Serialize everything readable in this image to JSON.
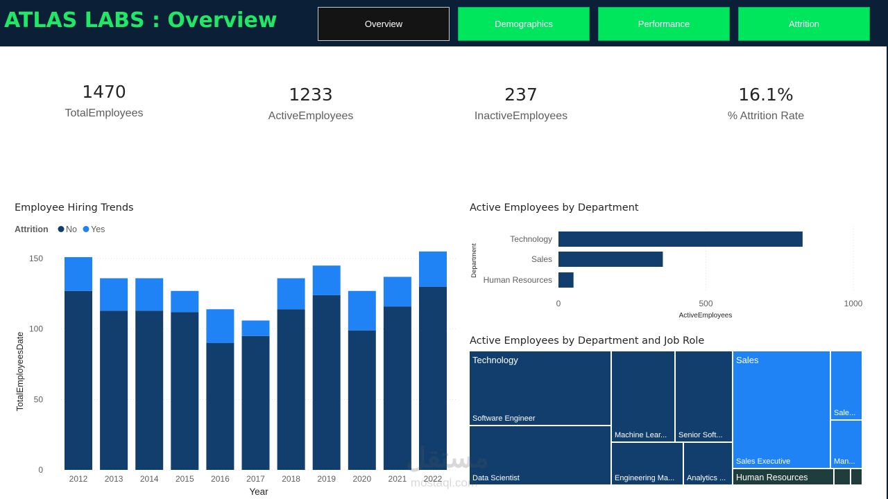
{
  "header": {
    "title": "ATLAS LABS : Overview",
    "tabs": [
      {
        "label": "Overview",
        "active": true
      },
      {
        "label": "Demographics",
        "active": false
      },
      {
        "label": "Performance",
        "active": false
      },
      {
        "label": "Attrition",
        "active": false
      }
    ]
  },
  "kpis": [
    {
      "value": "1470",
      "label": "TotalEmployees"
    },
    {
      "value": "1233",
      "label": "ActiveEmployees"
    },
    {
      "value": "237",
      "label": "InactiveEmployees"
    },
    {
      "value": "16.1%",
      "label": "% Attrition Rate"
    }
  ],
  "colors": {
    "dark": "#123e6e",
    "light": "#2083f5",
    "treemap_hr": "#1f3d3c"
  },
  "hiring_chart": {
    "title": "Employee Hiring Trends",
    "legend_title": "Attrition",
    "legend_items": [
      "No",
      "Yes"
    ],
    "y_label": "TotalEmployeesDate",
    "x_label": "Year",
    "y_ticks": [
      "0",
      "50",
      "100",
      "150"
    ]
  },
  "dept_chart": {
    "title": "Active Employees by Department",
    "y_label": "Department",
    "x_label": "ActiveEmployees",
    "x_ticks": [
      "0",
      "500",
      "1000"
    ]
  },
  "treemap": {
    "title": "Active Employees by Department and Job Role",
    "groups": [
      "Technology",
      "Sales",
      "Human Resources"
    ],
    "roles": [
      "Software Engineer",
      "Data Scientist",
      "Machine Lear...",
      "Senior Soft...",
      "Engineering Ma...",
      "Analytics ...",
      "Sales Executive",
      "Sale...",
      "Man..."
    ]
  },
  "watermark": {
    "text": "مستقل",
    "sub": "mostaql.com"
  },
  "chart_data": [
    {
      "type": "bar",
      "stacked": true,
      "title": "Employee Hiring Trends",
      "xlabel": "Year",
      "ylabel": "TotalEmployeesDate",
      "categories": [
        "2012",
        "2013",
        "2014",
        "2015",
        "2016",
        "2017",
        "2018",
        "2019",
        "2020",
        "2021",
        "2022"
      ],
      "series": [
        {
          "name": "No",
          "values": [
            127,
            113,
            113,
            112,
            90,
            95,
            114,
            124,
            99,
            116,
            130
          ]
        },
        {
          "name": "Yes",
          "values": [
            24,
            23,
            23,
            15,
            24,
            11,
            22,
            21,
            28,
            21,
            25
          ]
        }
      ],
      "ylim": [
        0,
        160
      ],
      "legend": "top-left",
      "grid": true
    },
    {
      "type": "bar",
      "orientation": "horizontal",
      "title": "Active Employees by Department",
      "xlabel": "ActiveEmployees",
      "ylabel": "Department",
      "categories": [
        "Technology",
        "Sales",
        "Human Resources"
      ],
      "values": [
        828,
        354,
        51
      ],
      "xlim": [
        0,
        1000
      ],
      "grid": true
    }
  ]
}
